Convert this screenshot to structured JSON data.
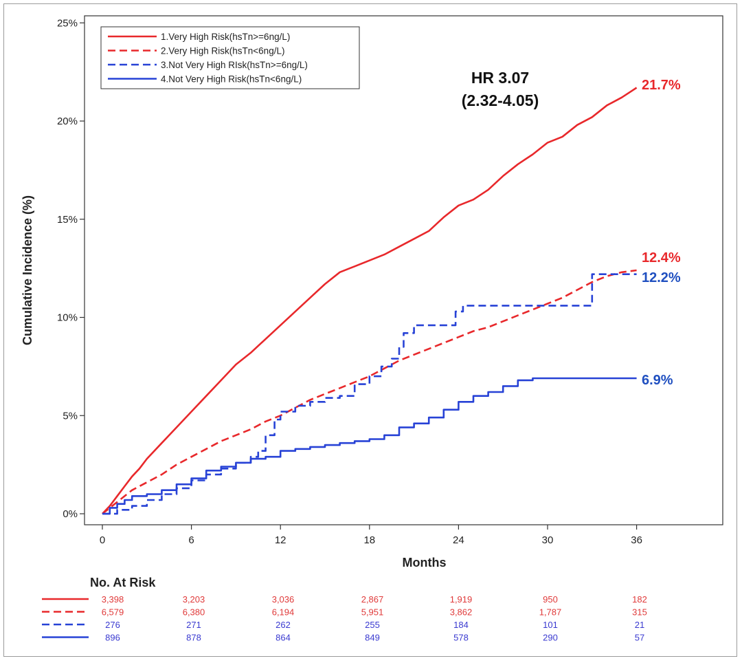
{
  "chart_data": {
    "type": "line",
    "xlabel": "Months",
    "ylabel": "Cumulative Incidence (%)",
    "xlim": [
      -1,
      41
    ],
    "ylim": [
      0,
      25
    ],
    "x_ticks": [
      0,
      6,
      12,
      18,
      24,
      30,
      36
    ],
    "x_tick_labels": [
      "0",
      "6",
      "12",
      "18",
      "24",
      "30",
      "36"
    ],
    "y_ticks": [
      0,
      5,
      10,
      15,
      20,
      25
    ],
    "y_tick_labels": [
      "0%",
      "5%",
      "10%",
      "15%",
      "20%",
      "25%"
    ],
    "annotation": {
      "line1": "HR 3.07",
      "line2": "(2.32-4.05)"
    },
    "series": [
      {
        "name": "1.Very High Risk(hsTn>=6ng/L)",
        "color": "#e8282b",
        "style": "solid",
        "end_label": "21.7%",
        "end_label_color": "#e8282b",
        "step": false,
        "x": [
          0,
          0.5,
          1,
          1.5,
          2,
          2.5,
          3,
          4,
          5,
          6,
          7,
          8,
          9,
          10,
          11,
          12,
          13,
          14,
          15,
          16,
          17,
          18,
          19,
          20,
          21,
          22,
          23,
          24,
          25,
          26,
          27,
          28,
          29,
          30,
          31,
          32,
          33,
          34,
          35,
          35.6,
          36
        ],
        "y": [
          0,
          0.4,
          0.9,
          1.4,
          1.9,
          2.3,
          2.8,
          3.6,
          4.4,
          5.2,
          6.0,
          6.8,
          7.6,
          8.2,
          8.9,
          9.6,
          10.3,
          11.0,
          11.7,
          12.3,
          12.6,
          12.9,
          13.2,
          13.6,
          14.0,
          14.4,
          15.1,
          15.7,
          16.0,
          16.5,
          17.2,
          17.8,
          18.3,
          18.9,
          19.2,
          19.8,
          20.2,
          20.8,
          21.2,
          21.5,
          21.7
        ]
      },
      {
        "name": "2.Very High Risk(hsTn<6ng/L)",
        "color": "#e8282b",
        "style": "dashed",
        "end_label": "12.4%",
        "end_label_color": "#e8282b",
        "step": false,
        "x": [
          0,
          1,
          2,
          3,
          4,
          5,
          6,
          7,
          8,
          9,
          10,
          11,
          12,
          13,
          14,
          15,
          16,
          17,
          18,
          19,
          20,
          21,
          22,
          23,
          24,
          25,
          26,
          27,
          28,
          29,
          30,
          31,
          32,
          33,
          34,
          35,
          36
        ],
        "y": [
          0,
          0.6,
          1.2,
          1.6,
          2.0,
          2.5,
          2.9,
          3.3,
          3.7,
          4.0,
          4.3,
          4.7,
          5.0,
          5.4,
          5.8,
          6.1,
          6.4,
          6.7,
          7.0,
          7.4,
          7.8,
          8.1,
          8.4,
          8.7,
          9.0,
          9.3,
          9.5,
          9.8,
          10.1,
          10.4,
          10.7,
          11.0,
          11.4,
          11.8,
          12.1,
          12.3,
          12.4
        ]
      },
      {
        "name": "3.Not Very High RIsk(hsTn>=6ng/L)",
        "color": "#2742d6",
        "style": "dashed",
        "end_label": "12.2%",
        "end_label_color": "#1f4fc0",
        "step": true,
        "x": [
          0,
          1,
          2,
          3,
          4,
          5,
          6,
          7,
          8,
          9,
          10,
          10.5,
          11,
          11.6,
          12,
          13,
          14,
          15,
          16,
          17,
          18,
          18.8,
          19.5,
          20,
          20.3,
          21,
          23.5,
          23.8,
          24.3,
          26,
          28,
          30,
          32,
          32.8,
          33,
          34,
          36
        ],
        "y": [
          0,
          0.2,
          0.4,
          0.7,
          1.0,
          1.3,
          1.7,
          2.0,
          2.3,
          2.6,
          2.9,
          3.2,
          4.0,
          4.8,
          5.2,
          5.5,
          5.7,
          5.9,
          6.0,
          6.6,
          7.0,
          7.5,
          7.9,
          8.5,
          9.2,
          9.6,
          9.6,
          10.3,
          10.6,
          10.6,
          10.6,
          10.6,
          10.6,
          10.6,
          12.2,
          12.2,
          12.2
        ]
      },
      {
        "name": "4.Not Very High Risk(hsTn<6ng/L)",
        "color": "#2742d6",
        "style": "solid",
        "end_label": "6.9%",
        "end_label_color": "#1f4fc0",
        "step": true,
        "x": [
          0,
          0.5,
          1,
          1.5,
          2,
          3,
          4,
          5,
          6,
          7,
          8,
          9,
          10,
          11,
          12,
          13,
          14,
          15,
          16,
          17,
          18,
          19,
          20,
          21,
          22,
          23,
          24,
          25,
          26,
          27,
          28,
          29,
          30,
          32,
          34,
          36
        ],
        "y": [
          0,
          0.3,
          0.5,
          0.7,
          0.9,
          1.0,
          1.2,
          1.5,
          1.8,
          2.2,
          2.4,
          2.6,
          2.8,
          2.9,
          3.2,
          3.3,
          3.4,
          3.5,
          3.6,
          3.7,
          3.8,
          4.0,
          4.4,
          4.6,
          4.9,
          5.3,
          5.7,
          6.0,
          6.2,
          6.5,
          6.8,
          6.9,
          6.9,
          6.9,
          6.9,
          6.9
        ]
      }
    ],
    "at_risk": {
      "title": "No. At Risk",
      "rows": [
        {
          "style": "solid",
          "color": "#e8282b",
          "text_color": "#e03a3a",
          "values": [
            "3,398",
            "3,203",
            "3,036",
            "2,867",
            "1,919",
            "950",
            "182"
          ]
        },
        {
          "style": "dashed",
          "color": "#e8282b",
          "text_color": "#e03a3a",
          "values": [
            "6,579",
            "6,380",
            "6,194",
            "5,951",
            "3,862",
            "1,787",
            "315"
          ]
        },
        {
          "style": "dashed",
          "color": "#2742d6",
          "text_color": "#3a3ad0",
          "values": [
            "276",
            "271",
            "262",
            "255",
            "184",
            "101",
            "21"
          ]
        },
        {
          "style": "solid",
          "color": "#2742d6",
          "text_color": "#3a3ad0",
          "values": [
            "896",
            "878",
            "864",
            "849",
            "578",
            "290",
            "57"
          ]
        }
      ]
    }
  }
}
